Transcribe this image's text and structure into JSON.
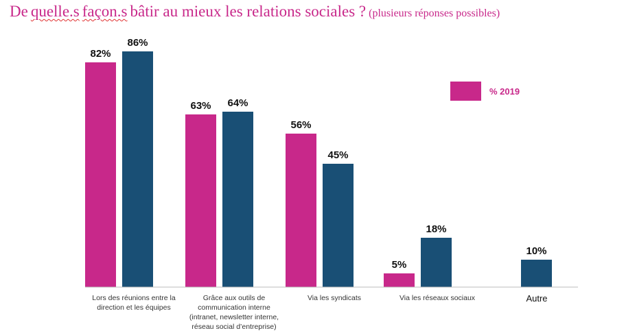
{
  "title": {
    "w1": "De",
    "w2": "quelle.s",
    "w3": "façon.s",
    "rest": "bâtir au mieux les relations sociales ?",
    "sub": "(plusieurs réponses possibles)"
  },
  "colors": {
    "series1": "#c8288a",
    "series2": "#194f75",
    "axis": "#bbbbbb"
  },
  "chart_data": {
    "type": "bar",
    "title": "De quelle.s façon.s bâtir au mieux les relations sociales ? (plusieurs réponses possibles)",
    "categories": [
      "Lors des réunions entre la\ndirection et les équipes",
      "Grâce aux outils de\ncommunication interne\n(intranet, newsletter interne,\nréseau social d’entreprise)",
      "Via les syndicats",
      "Via les réseaux sociaux",
      "Autre"
    ],
    "series": [
      {
        "name": "% 2019",
        "values": [
          82,
          63,
          56,
          5,
          null
        ],
        "labels": [
          "82%",
          "63%",
          "56%",
          "5%",
          ""
        ]
      },
      {
        "name": "",
        "values": [
          86,
          64,
          45,
          18,
          10
        ],
        "labels": [
          "86%",
          "64%",
          "45%",
          "18%",
          "10%"
        ]
      }
    ],
    "ylim": [
      0,
      100
    ],
    "grid": false,
    "legend": "top-right",
    "xlabel": "",
    "ylabel": ""
  }
}
